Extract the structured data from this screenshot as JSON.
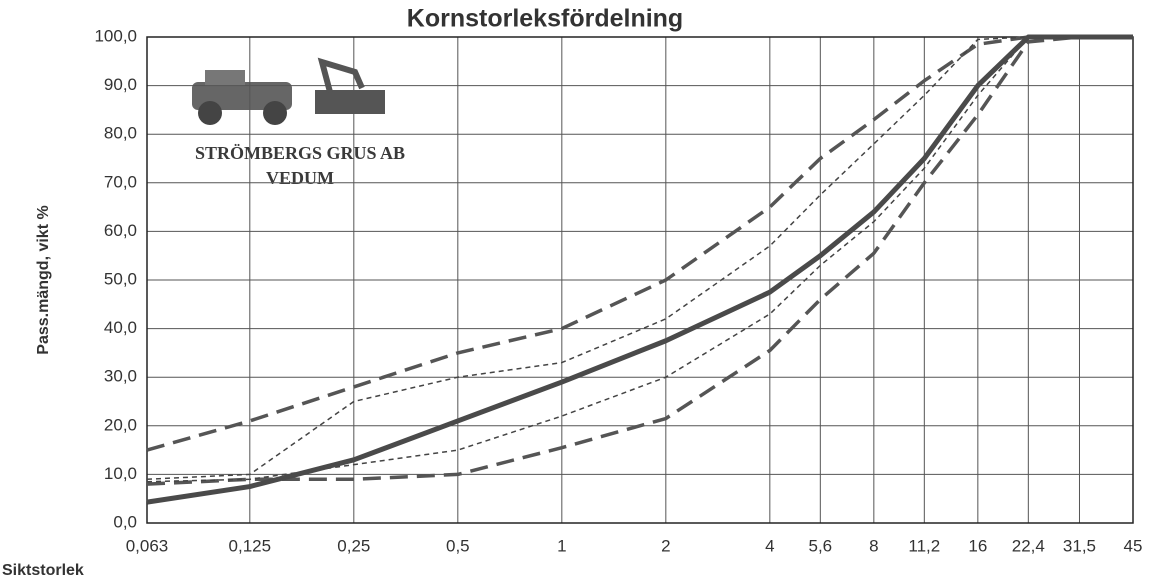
{
  "chart_data": {
    "type": "line",
    "title": "Kornstorleksfördelning",
    "y_label": "Pass.mängd, vikt %",
    "x_label": "Siktstorlek",
    "logo_text": [
      "STRÖMBERGS GRUS AB",
      "VEDUM"
    ],
    "x_scale": "log",
    "grid": true,
    "x": [
      0.063,
      0.125,
      0.25,
      0.5,
      1,
      2,
      4,
      5.6,
      8,
      11.2,
      16,
      22.4,
      31.5,
      45
    ],
    "xlim": [
      0.063,
      45
    ],
    "xticks": [
      {
        "value": 0.063,
        "label": "0,063"
      },
      {
        "value": 0.125,
        "label": "0,125"
      },
      {
        "value": 0.25,
        "label": "0,25"
      },
      {
        "value": 0.5,
        "label": "0,5"
      },
      1,
      2,
      4,
      {
        "value": 5.6,
        "label": "5,6"
      },
      8,
      {
        "value": 11.2,
        "label": "11,2"
      },
      16,
      {
        "value": 22.4,
        "label": "22,4"
      },
      {
        "value": 31.5,
        "label": "31,5"
      },
      45
    ],
    "ylim": [
      0,
      100
    ],
    "yticks": [
      {
        "value": 0,
        "label": "0,0"
      },
      {
        "value": 10,
        "label": "10,0"
      },
      {
        "value": 20,
        "label": "20,0"
      },
      {
        "value": 30,
        "label": "30,0"
      },
      {
        "value": 40,
        "label": "40,0"
      },
      {
        "value": 50,
        "label": "50,0"
      },
      {
        "value": 60,
        "label": "60,0"
      },
      {
        "value": 70,
        "label": "70,0"
      },
      {
        "value": 80,
        "label": "80,0"
      },
      {
        "value": 90,
        "label": "90,0"
      },
      {
        "value": 100,
        "label": "100,0"
      }
    ],
    "series": [
      {
        "color": "#555555",
        "style": "dashed",
        "width": 3.5,
        "values": [
          15,
          21,
          28,
          35,
          40,
          50,
          65,
          75,
          83,
          91,
          98.5,
          100,
          100,
          100
        ]
      },
      {
        "color": "#555555",
        "style": "dashed",
        "width": 3.5,
        "values": [
          8,
          9,
          9,
          10,
          15.5,
          21.5,
          35.5,
          46,
          55.5,
          70,
          84,
          99,
          100,
          100
        ]
      },
      {
        "color": "#444444",
        "style": "dotted",
        "width": 1.5,
        "values": [
          9,
          10,
          25,
          30,
          33,
          42,
          57,
          67.5,
          78,
          88,
          99.5,
          100,
          100,
          100
        ]
      },
      {
        "color": "#444444",
        "style": "dotted",
        "width": 1.5,
        "values": [
          8.5,
          9,
          12,
          15,
          22,
          30,
          43,
          53,
          62,
          73,
          88,
          100,
          100,
          100
        ]
      },
      {
        "color": "#4a4a4a",
        "style": "solid",
        "width": 5,
        "values": [
          4.3,
          7.5,
          13,
          21,
          29,
          37.5,
          47.5,
          55,
          64,
          75,
          90,
          100,
          100,
          100
        ]
      }
    ]
  }
}
